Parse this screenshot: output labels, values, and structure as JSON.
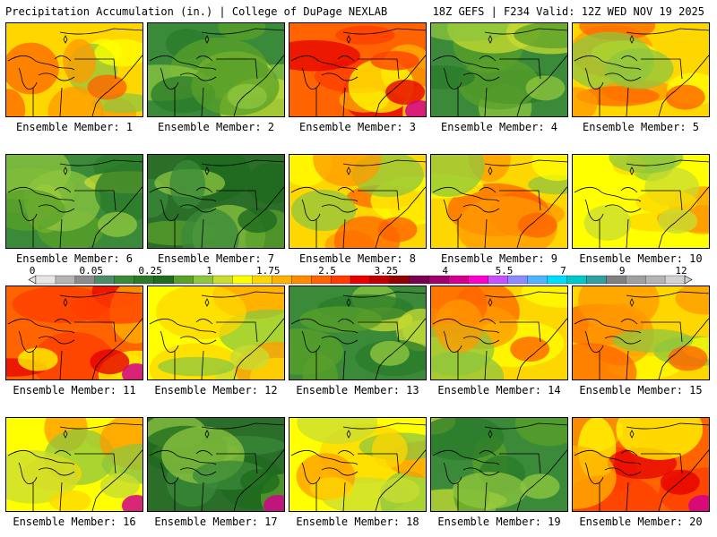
{
  "header": {
    "title": "Precipitation Accumulation (in.) | College of DuPage NEXLAB",
    "run_info": "18Z GEFS | F234 Valid: 12Z WED NOV 19 2025"
  },
  "caption_prefix": "Ensemble Member: ",
  "members": [
    {
      "id": "1",
      "scheme": "orange"
    },
    {
      "id": "2",
      "scheme": "green"
    },
    {
      "id": "3",
      "scheme": "red"
    },
    {
      "id": "4",
      "scheme": "green"
    },
    {
      "id": "5",
      "scheme": "orange"
    },
    {
      "id": "6",
      "scheme": "green"
    },
    {
      "id": "7",
      "scheme": "darkgreen"
    },
    {
      "id": "8",
      "scheme": "orange"
    },
    {
      "id": "9",
      "scheme": "orange"
    },
    {
      "id": "10",
      "scheme": "yellow"
    },
    {
      "id": "11",
      "scheme": "red"
    },
    {
      "id": "12",
      "scheme": "yellow"
    },
    {
      "id": "13",
      "scheme": "green"
    },
    {
      "id": "14",
      "scheme": "orange"
    },
    {
      "id": "15",
      "scheme": "orange"
    },
    {
      "id": "16",
      "scheme": "yellow"
    },
    {
      "id": "17",
      "scheme": "darkgreen"
    },
    {
      "id": "18",
      "scheme": "yellow"
    },
    {
      "id": "19",
      "scheme": "green"
    },
    {
      "id": "20",
      "scheme": "red"
    }
  ],
  "colorbar": {
    "labels": [
      "0",
      "0.05",
      "0.25",
      "1",
      "1.75",
      "2.5",
      "3.25",
      "4",
      "5.5",
      "7",
      "9",
      "12"
    ],
    "colors": [
      "#e6e6e6",
      "#b4b4b4",
      "#8c8c8c",
      "#4d8c6a",
      "#3a8a3a",
      "#2a7a2a",
      "#1f6b1f",
      "#5aa02a",
      "#8dc63f",
      "#c8dc32",
      "#ffff00",
      "#ffd700",
      "#ffb300",
      "#ff8c00",
      "#ff6400",
      "#ff3c00",
      "#e60000",
      "#c00000",
      "#900000",
      "#780050",
      "#a0006e",
      "#d2008c",
      "#ff00c8",
      "#c850ff",
      "#8c8cff",
      "#50b4ff",
      "#00dcff",
      "#00c8c8",
      "#30a0a0",
      "#808080",
      "#a0a0a0",
      "#b4b4b4",
      "#d2d2d2"
    ]
  },
  "colors": {
    "green": "#3a8a3a",
    "darkgreen": "#2a6e2a",
    "lightgreen": "#8dc63f",
    "yellow": "#ffff00",
    "orange": "#ff9a00",
    "red": "#ff3c00",
    "magenta": "#d2008c"
  }
}
